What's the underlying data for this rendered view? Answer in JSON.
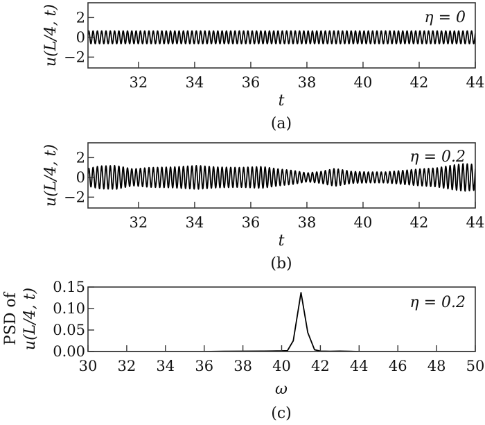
{
  "figure": {
    "panels": [
      {
        "id": "a",
        "caption": "(a)",
        "ylabel": "u(L/4, t)",
        "xlabel": "t",
        "annotation": "η = 0"
      },
      {
        "id": "b",
        "caption": "(b)",
        "ylabel": "u(L/4, t)",
        "xlabel": "t",
        "annotation": "η = 0.2"
      },
      {
        "id": "c",
        "caption": "(c)",
        "ylabel_line1": "PSD of",
        "ylabel_line2": "u(L/4, t)",
        "xlabel": "ω",
        "annotation": "η = 0.2"
      }
    ]
  },
  "chart_data": [
    {
      "type": "line",
      "panel": "(a)",
      "title": "",
      "annotation": "η = 0",
      "xlabel": "t",
      "ylabel": "u(L/4, t)",
      "xlim": [
        30.2,
        44
      ],
      "ylim": [
        -3.1,
        3.5
      ],
      "xticks": [
        32,
        34,
        36,
        38,
        40,
        42,
        44
      ],
      "yticks": [
        -2,
        0,
        2
      ],
      "ytick_labels": [
        "−2",
        "0",
        "2"
      ],
      "grid": false,
      "series": [
        {
          "name": "u(L/4,t), η=0",
          "kind": "sinusoid",
          "angular_frequency": 41.0,
          "amplitude_envelope": {
            "t": [
              30.2,
              44
            ],
            "amp": [
              0.65,
              0.65
            ]
          }
        }
      ]
    },
    {
      "type": "line",
      "panel": "(b)",
      "title": "",
      "annotation": "η = 0.2",
      "xlabel": "t",
      "ylabel": "u(L/4, t)",
      "xlim": [
        30.2,
        44
      ],
      "ylim": [
        -3.1,
        3.5
      ],
      "xticks": [
        32,
        34,
        36,
        38,
        40,
        42,
        44
      ],
      "yticks": [
        -2,
        0,
        2
      ],
      "ytick_labels": [
        "−2",
        "0",
        "2"
      ],
      "grid": false,
      "series": [
        {
          "name": "u(L/4,t), η=0.2",
          "kind": "modulated-sinusoid",
          "angular_frequency": 41.0,
          "amplitude_envelope": {
            "t": [
              30.2,
              30.6,
              31.2,
              31.8,
              32.4,
              33.2,
              34.1,
              34.8,
              35.6,
              36.4,
              37.0,
              37.5,
              38.0,
              38.5,
              39.0,
              39.6,
              40.2,
              40.8,
              41.4,
              42.0,
              42.6,
              43.2,
              43.6,
              44.0
            ],
            "amp": [
              0.9,
              1.15,
              1.2,
              0.85,
              1.0,
              1.05,
              1.2,
              1.05,
              1.0,
              1.1,
              0.85,
              0.7,
              0.45,
              0.6,
              0.9,
              0.6,
              0.55,
              0.55,
              0.7,
              0.85,
              0.95,
              1.25,
              1.4,
              1.3
            ]
          }
        }
      ]
    },
    {
      "type": "line",
      "panel": "(c)",
      "title": "",
      "annotation": "η = 0.2",
      "xlabel": "ω",
      "ylabel": "PSD of u(L/4, t)",
      "xlim": [
        30,
        50
      ],
      "ylim": [
        0,
        0.15
      ],
      "xticks": [
        30,
        32,
        34,
        36,
        38,
        40,
        42,
        44,
        46,
        48,
        50
      ],
      "yticks": [
        0.0,
        0.05,
        0.1,
        0.15
      ],
      "ytick_labels": [
        "0.00",
        "0.05",
        "0.10",
        "0.15"
      ],
      "grid": false,
      "series": [
        {
          "name": "PSD, η=0.2",
          "x": [
            30,
            32,
            34,
            36,
            37,
            38,
            39,
            39.5,
            40.0,
            40.3,
            40.6,
            41.0,
            41.35,
            41.7,
            42.0,
            42.5,
            43.0,
            43.5,
            44,
            46,
            48,
            50
          ],
          "y": [
            0.0,
            0.0,
            0.0,
            0.0,
            0.0005,
            0.0008,
            0.001,
            0.0012,
            0.0015,
            0.002,
            0.025,
            0.137,
            0.044,
            0.004,
            0.001,
            0.0005,
            0.001,
            0.0005,
            0.0,
            0.0,
            0.0,
            0.0
          ]
        }
      ]
    }
  ]
}
